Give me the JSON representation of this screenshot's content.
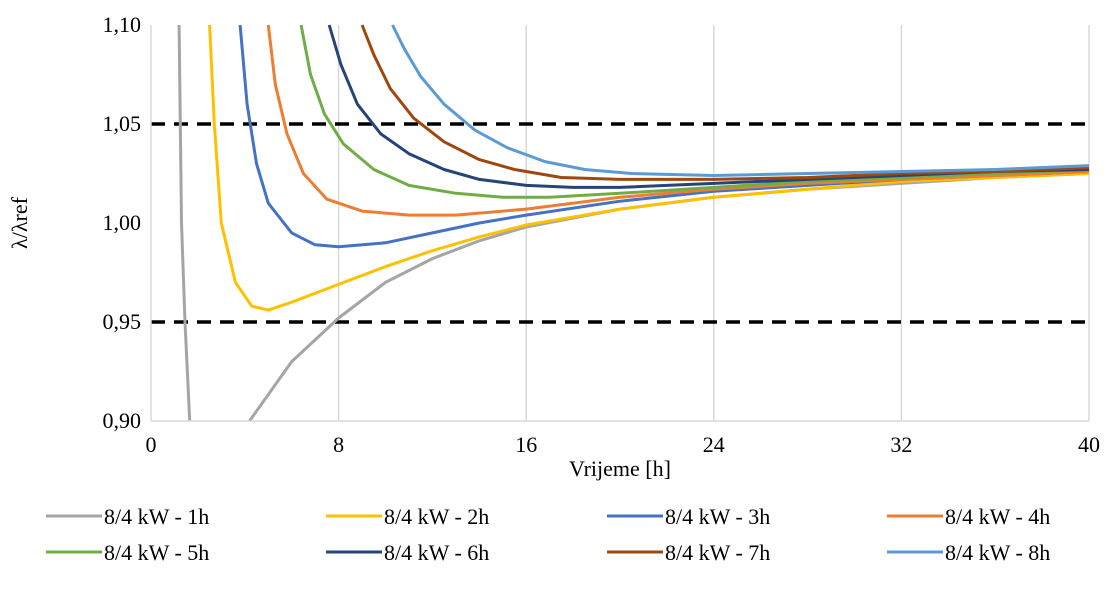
{
  "chart_data": {
    "type": "line",
    "xlabel": "Vrijeme [h]",
    "ylabel": "λ/λref",
    "xlim": [
      0,
      40
    ],
    "ylim": [
      0.9,
      1.1
    ],
    "x_ticks": [
      "0",
      "8",
      "16",
      "24",
      "32",
      "40"
    ],
    "y_ticks": [
      "0,90",
      "0,95",
      "1,00",
      "1,05",
      "1,10"
    ],
    "grid": "vertical",
    "legend_position": "bottom",
    "reference_lines": [
      {
        "y": 1.05,
        "style": "dashed",
        "color": "#000000"
      },
      {
        "y": 0.95,
        "style": "dashed",
        "color": "#000000"
      }
    ],
    "series": [
      {
        "name": "8/4 kW - 1h",
        "color": "#A5A5A5",
        "points": [
          [
            1.2,
            1.1
          ],
          [
            1.3,
            1.0
          ],
          [
            1.45,
            0.95
          ],
          [
            1.65,
            0.9
          ]
        ],
        "points2": [
          [
            4.2,
            0.9
          ],
          [
            6,
            0.93
          ],
          [
            8,
            0.952
          ],
          [
            10,
            0.97
          ],
          [
            12,
            0.982
          ],
          [
            14,
            0.991
          ],
          [
            16,
            0.998
          ],
          [
            20,
            1.007
          ],
          [
            24,
            1.013
          ],
          [
            28,
            1.017
          ],
          [
            32,
            1.02
          ],
          [
            36,
            1.023
          ],
          [
            40,
            1.025
          ]
        ]
      },
      {
        "name": "8/4 kW - 2h",
        "color": "#FFC000",
        "points": [
          [
            2.5,
            1.1
          ],
          [
            2.7,
            1.05
          ],
          [
            3.0,
            1.0
          ],
          [
            3.6,
            0.97
          ],
          [
            4.3,
            0.958
          ],
          [
            5,
            0.956
          ],
          [
            6,
            0.96
          ],
          [
            8,
            0.969
          ],
          [
            10,
            0.978
          ],
          [
            12,
            0.986
          ],
          [
            14,
            0.993
          ],
          [
            16,
            0.999
          ],
          [
            20,
            1.007
          ],
          [
            24,
            1.013
          ],
          [
            28,
            1.017
          ],
          [
            32,
            1.021
          ],
          [
            36,
            1.023
          ],
          [
            40,
            1.025
          ]
        ]
      },
      {
        "name": "8/4 kW - 3h",
        "color": "#4472C4",
        "points": [
          [
            3.8,
            1.1
          ],
          [
            4.1,
            1.06
          ],
          [
            4.5,
            1.03
          ],
          [
            5,
            1.01
          ],
          [
            6,
            0.995
          ],
          [
            7,
            0.989
          ],
          [
            8,
            0.988
          ],
          [
            10,
            0.99
          ],
          [
            12,
            0.995
          ],
          [
            14,
            1.0
          ],
          [
            16,
            1.004
          ],
          [
            20,
            1.011
          ],
          [
            24,
            1.016
          ],
          [
            28,
            1.019
          ],
          [
            32,
            1.022
          ],
          [
            36,
            1.024
          ],
          [
            40,
            1.026
          ]
        ]
      },
      {
        "name": "8/4 kW - 4h",
        "color": "#ED7D31",
        "points": [
          [
            5,
            1.1
          ],
          [
            5.3,
            1.07
          ],
          [
            5.8,
            1.045
          ],
          [
            6.5,
            1.025
          ],
          [
            7.5,
            1.012
          ],
          [
            9,
            1.006
          ],
          [
            11,
            1.004
          ],
          [
            13,
            1.004
          ],
          [
            16,
            1.007
          ],
          [
            20,
            1.013
          ],
          [
            24,
            1.017
          ],
          [
            28,
            1.02
          ],
          [
            32,
            1.022
          ],
          [
            36,
            1.024
          ],
          [
            40,
            1.026
          ]
        ]
      },
      {
        "name": "8/4 kW - 5h",
        "color": "#70AD47",
        "points": [
          [
            6.4,
            1.1
          ],
          [
            6.8,
            1.075
          ],
          [
            7.4,
            1.055
          ],
          [
            8.2,
            1.04
          ],
          [
            9.5,
            1.027
          ],
          [
            11,
            1.019
          ],
          [
            13,
            1.015
          ],
          [
            15,
            1.013
          ],
          [
            17,
            1.013
          ],
          [
            20,
            1.015
          ],
          [
            24,
            1.018
          ],
          [
            28,
            1.021
          ],
          [
            32,
            1.023
          ],
          [
            36,
            1.025
          ],
          [
            40,
            1.027
          ]
        ]
      },
      {
        "name": "8/4 kW - 6h",
        "color": "#264478",
        "points": [
          [
            7.6,
            1.1
          ],
          [
            8.1,
            1.08
          ],
          [
            8.8,
            1.06
          ],
          [
            9.8,
            1.045
          ],
          [
            11,
            1.035
          ],
          [
            12.5,
            1.027
          ],
          [
            14,
            1.022
          ],
          [
            16,
            1.019
          ],
          [
            18,
            1.018
          ],
          [
            20,
            1.018
          ],
          [
            24,
            1.02
          ],
          [
            28,
            1.022
          ],
          [
            32,
            1.024
          ],
          [
            36,
            1.026
          ],
          [
            40,
            1.027
          ]
        ]
      },
      {
        "name": "8/4 kW - 7h",
        "color": "#9E480E",
        "points": [
          [
            9,
            1.1
          ],
          [
            9.5,
            1.085
          ],
          [
            10.2,
            1.068
          ],
          [
            11.2,
            1.053
          ],
          [
            12.5,
            1.041
          ],
          [
            14,
            1.032
          ],
          [
            15.5,
            1.027
          ],
          [
            17.5,
            1.023
          ],
          [
            20,
            1.022
          ],
          [
            24,
            1.022
          ],
          [
            28,
            1.023
          ],
          [
            32,
            1.025
          ],
          [
            36,
            1.026
          ],
          [
            40,
            1.028
          ]
        ]
      },
      {
        "name": "8/4 kW - 8h",
        "color": "#5B9BD5",
        "points": [
          [
            10.3,
            1.1
          ],
          [
            10.8,
            1.088
          ],
          [
            11.5,
            1.074
          ],
          [
            12.5,
            1.06
          ],
          [
            13.8,
            1.047
          ],
          [
            15.2,
            1.038
          ],
          [
            16.8,
            1.031
          ],
          [
            18.5,
            1.027
          ],
          [
            20.5,
            1.025
          ],
          [
            24,
            1.024
          ],
          [
            28,
            1.025
          ],
          [
            32,
            1.026
          ],
          [
            36,
            1.027
          ],
          [
            40,
            1.029
          ]
        ]
      }
    ]
  }
}
